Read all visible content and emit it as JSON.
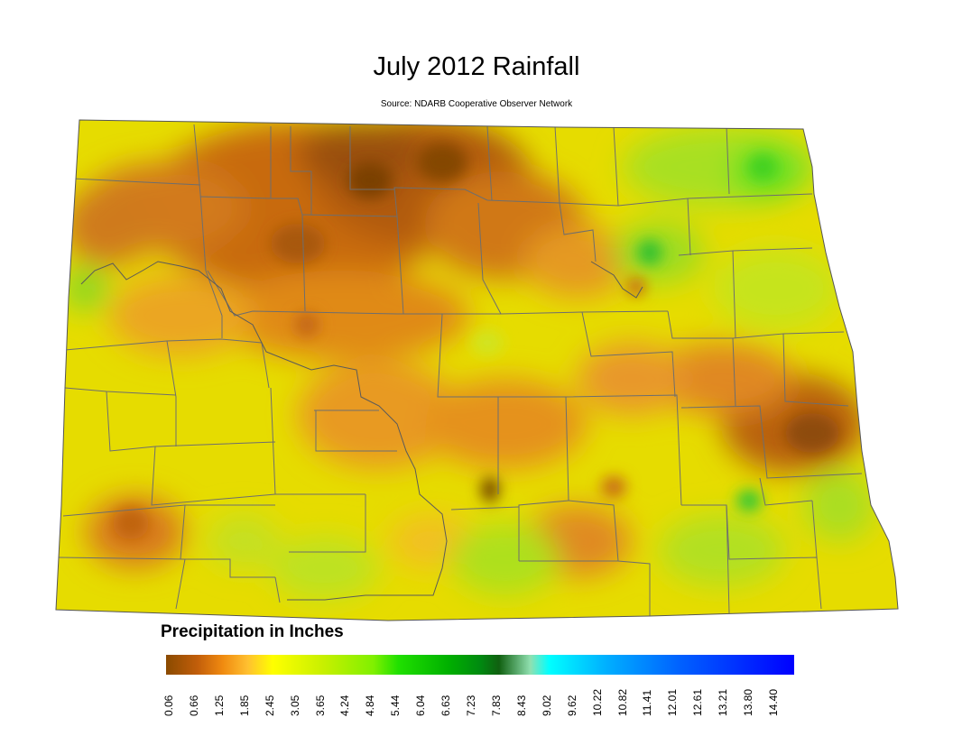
{
  "title": "July 2012 Rainfall",
  "subtitle": "Source: NDARB Cooperative Observer Network",
  "legend": {
    "title": "Precipitation in Inches",
    "ticks": [
      "0.06",
      "0.66",
      "1.25",
      "1.85",
      "2.45",
      "3.05",
      "3.65",
      "4.24",
      "4.84",
      "5.44",
      "6.04",
      "6.63",
      "7.23",
      "7.83",
      "8.43",
      "9.02",
      "9.62",
      "10.22",
      "10.82",
      "11.41",
      "12.01",
      "12.61",
      "13.21",
      "13.80",
      "14.40"
    ],
    "colors": [
      {
        "stop": 0.0,
        "color": "#8a4a00"
      },
      {
        "stop": 0.05,
        "color": "#c25e0a"
      },
      {
        "stop": 0.09,
        "color": "#f08a10"
      },
      {
        "stop": 0.13,
        "color": "#ffc030"
      },
      {
        "stop": 0.17,
        "color": "#ffff00"
      },
      {
        "stop": 0.25,
        "color": "#c8f000"
      },
      {
        "stop": 0.33,
        "color": "#80f000"
      },
      {
        "stop": 0.37,
        "color": "#20e000"
      },
      {
        "stop": 0.45,
        "color": "#00b000"
      },
      {
        "stop": 0.5,
        "color": "#008a10"
      },
      {
        "stop": 0.53,
        "color": "#106010"
      },
      {
        "stop": 0.58,
        "color": "#90e0b0"
      },
      {
        "stop": 0.61,
        "color": "#00ffff"
      },
      {
        "stop": 0.7,
        "color": "#00b0ff"
      },
      {
        "stop": 0.82,
        "color": "#0060ff"
      },
      {
        "stop": 1.0,
        "color": "#0000ff"
      }
    ]
  }
}
